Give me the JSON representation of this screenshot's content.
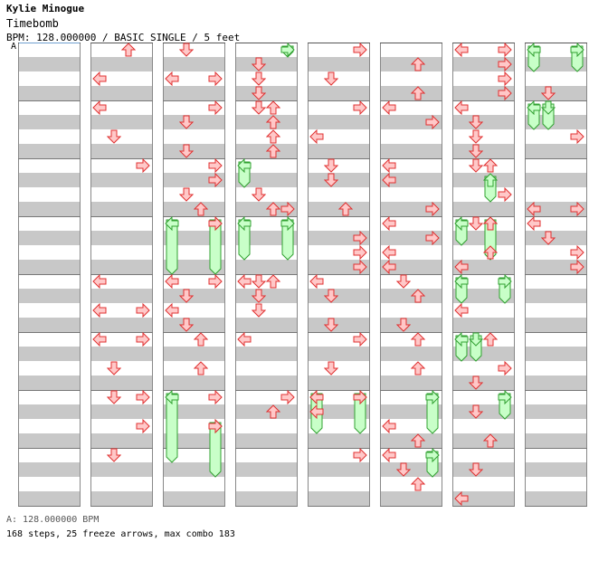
{
  "song": {
    "artist": "Kylie Minogue",
    "title": "Timebomb",
    "info": "BPM: 128.000000 / BASIC SINGLE / 5 feet"
  },
  "marker": {
    "label": "A"
  },
  "footer": {
    "bpm_line": "A: 128.000000 BPM",
    "stats": "168 steps, 25 freeze arrows, max combo 183"
  },
  "colors": {
    "arrow_fill": "#ffc8c8",
    "arrow_stroke": "#e03030",
    "freeze_fill": "#c8ffc8",
    "freeze_stroke": "#30a030",
    "stripe": "#c8c8c8"
  },
  "chart_data": {
    "type": "step-chart",
    "rows_per_column": 32,
    "columns": [
      {
        "notes": [],
        "holds": []
      },
      {
        "notes": [
          [
            "U",
            0
          ],
          [
            "L",
            2
          ],
          [
            "L",
            4
          ],
          [
            "D",
            6
          ],
          [
            "R",
            8
          ],
          [
            "L",
            16
          ],
          [
            "L",
            18
          ],
          [
            "R",
            18
          ],
          [
            "L",
            20
          ],
          [
            "D",
            22
          ],
          [
            "R",
            20
          ],
          [
            "R",
            24
          ],
          [
            "D",
            24
          ],
          [
            "R",
            26
          ],
          [
            "D",
            28
          ]
        ],
        "holds": []
      },
      {
        "notes": [
          [
            "D",
            0
          ],
          [
            "L",
            2
          ],
          [
            "R",
            2
          ],
          [
            "R",
            4
          ],
          [
            "D",
            5
          ],
          [
            "D",
            7
          ],
          [
            "R",
            8
          ],
          [
            "R",
            9
          ],
          [
            "D",
            10
          ],
          [
            "U",
            11
          ],
          [
            "R",
            12
          ],
          [
            "L",
            16
          ],
          [
            "R",
            16
          ],
          [
            "D",
            17
          ],
          [
            "L",
            18
          ],
          [
            "D",
            19
          ],
          [
            "U",
            20
          ],
          [
            "U",
            22
          ],
          [
            "R",
            24
          ],
          [
            "R",
            26
          ]
        ],
        "holds": [
          [
            "L",
            12,
            15
          ],
          [
            "R",
            12,
            15
          ],
          [
            "L",
            24,
            28
          ],
          [
            "R",
            26,
            29
          ]
        ]
      },
      {
        "notes": [
          [
            "D",
            1
          ],
          [
            "D",
            2
          ],
          [
            "D",
            3
          ],
          [
            "D",
            4
          ],
          [
            "U",
            4
          ],
          [
            "U",
            5
          ],
          [
            "U",
            6
          ],
          [
            "U",
            7
          ],
          [
            "R",
            11
          ],
          [
            "U",
            11
          ],
          [
            "D",
            10
          ],
          [
            "L",
            16
          ],
          [
            "U",
            16
          ],
          [
            "D",
            16
          ],
          [
            "D",
            17
          ],
          [
            "D",
            18
          ],
          [
            "L",
            20
          ],
          [
            "R",
            24
          ],
          [
            "U",
            25
          ]
        ],
        "holds": [
          [
            "R",
            0,
            0
          ],
          [
            "L",
            8,
            9
          ],
          [
            "L",
            12,
            14
          ],
          [
            "R",
            12,
            14
          ]
        ]
      },
      {
        "notes": [
          [
            "R",
            0
          ],
          [
            "D",
            2
          ],
          [
            "R",
            4
          ],
          [
            "L",
            6
          ],
          [
            "D",
            8
          ],
          [
            "D",
            9
          ],
          [
            "U",
            11
          ],
          [
            "R",
            13
          ],
          [
            "R",
            14
          ],
          [
            "R",
            15
          ],
          [
            "L",
            16
          ],
          [
            "D",
            17
          ],
          [
            "D",
            19
          ],
          [
            "R",
            20
          ],
          [
            "D",
            22
          ],
          [
            "R",
            24
          ],
          [
            "L",
            24
          ],
          [
            "L",
            25
          ],
          [
            "R",
            28
          ]
        ],
        "holds": [
          [
            "L",
            24,
            26
          ],
          [
            "R",
            24,
            26
          ]
        ]
      },
      {
        "notes": [
          [
            "U",
            1
          ],
          [
            "U",
            3
          ],
          [
            "L",
            4
          ],
          [
            "R",
            5
          ],
          [
            "L",
            8
          ],
          [
            "L",
            9
          ],
          [
            "R",
            11
          ],
          [
            "L",
            12
          ],
          [
            "R",
            13
          ],
          [
            "L",
            14
          ],
          [
            "L",
            15
          ],
          [
            "D",
            16
          ],
          [
            "U",
            17
          ],
          [
            "D",
            19
          ],
          [
            "U",
            20
          ],
          [
            "U",
            22
          ],
          [
            "L",
            26
          ],
          [
            "U",
            27
          ],
          [
            "L",
            28
          ],
          [
            "D",
            29
          ],
          [
            "U",
            30
          ]
        ],
        "holds": [
          [
            "R",
            24,
            26
          ],
          [
            "R",
            28,
            29
          ]
        ]
      },
      {
        "notes": [
          [
            "L",
            0
          ],
          [
            "R",
            0
          ],
          [
            "R",
            1
          ],
          [
            "R",
            2
          ],
          [
            "R",
            3
          ],
          [
            "L",
            4
          ],
          [
            "D",
            5
          ],
          [
            "D",
            6
          ],
          [
            "D",
            7
          ],
          [
            "D",
            8
          ],
          [
            "U",
            8
          ],
          [
            "R",
            10
          ],
          [
            "D",
            12
          ],
          [
            "U",
            12
          ],
          [
            "U",
            14
          ],
          [
            "L",
            15
          ],
          [
            "L",
            18
          ],
          [
            "U",
            20
          ],
          [
            "R",
            22
          ],
          [
            "D",
            23
          ],
          [
            "D",
            25
          ],
          [
            "U",
            27
          ],
          [
            "D",
            29
          ],
          [
            "L",
            31
          ]
        ],
        "holds": [
          [
            "U",
            9,
            10
          ],
          [
            "L",
            12,
            13
          ],
          [
            "U",
            12,
            14
          ],
          [
            "L",
            16,
            17
          ],
          [
            "R",
            16,
            17
          ],
          [
            "L",
            20,
            21
          ],
          [
            "D",
            20,
            21
          ],
          [
            "R",
            24,
            25
          ]
        ]
      },
      {
        "notes": [
          [
            "D",
            3
          ],
          [
            "R",
            6
          ],
          [
            "L",
            11
          ],
          [
            "R",
            11
          ],
          [
            "L",
            12
          ],
          [
            "D",
            13
          ],
          [
            "R",
            14
          ],
          [
            "R",
            15
          ]
        ],
        "holds": [
          [
            "L",
            0,
            1
          ],
          [
            "R",
            0,
            1
          ],
          [
            "L",
            4,
            5
          ],
          [
            "D",
            4,
            5
          ]
        ]
      }
    ]
  }
}
